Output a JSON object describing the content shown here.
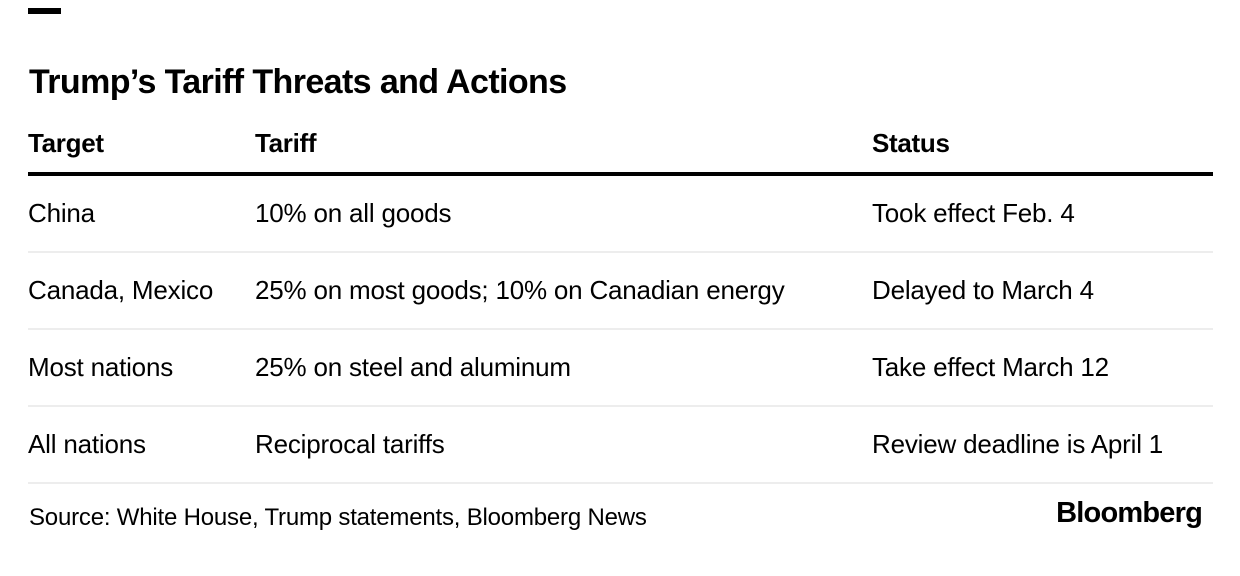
{
  "colors": {
    "background": "#ffffff",
    "text": "#000000",
    "header_rule": "#000000",
    "row_divider": "#ededed",
    "brand_dash": "#000000"
  },
  "chart_data": {
    "type": "table",
    "title": "Trump’s Tariff Threats and Actions",
    "columns": [
      "Target",
      "Tariff",
      "Status"
    ],
    "rows": [
      [
        "China",
        "10% on all goods",
        "Took effect Feb. 4"
      ],
      [
        "Canada, Mexico",
        "25% on most goods; 10% on Canadian energy",
        "Delayed to March 4"
      ],
      [
        "Most nations",
        "25% on steel and aluminum",
        "Take effect March 12"
      ],
      [
        "All nations",
        "Reciprocal tariffs",
        "Review deadline is April 1"
      ]
    ],
    "source": "Source: White House, Trump statements, Bloomberg News",
    "brand": "Bloomberg",
    "layout": {
      "grid": "off",
      "legend": "none"
    }
  }
}
